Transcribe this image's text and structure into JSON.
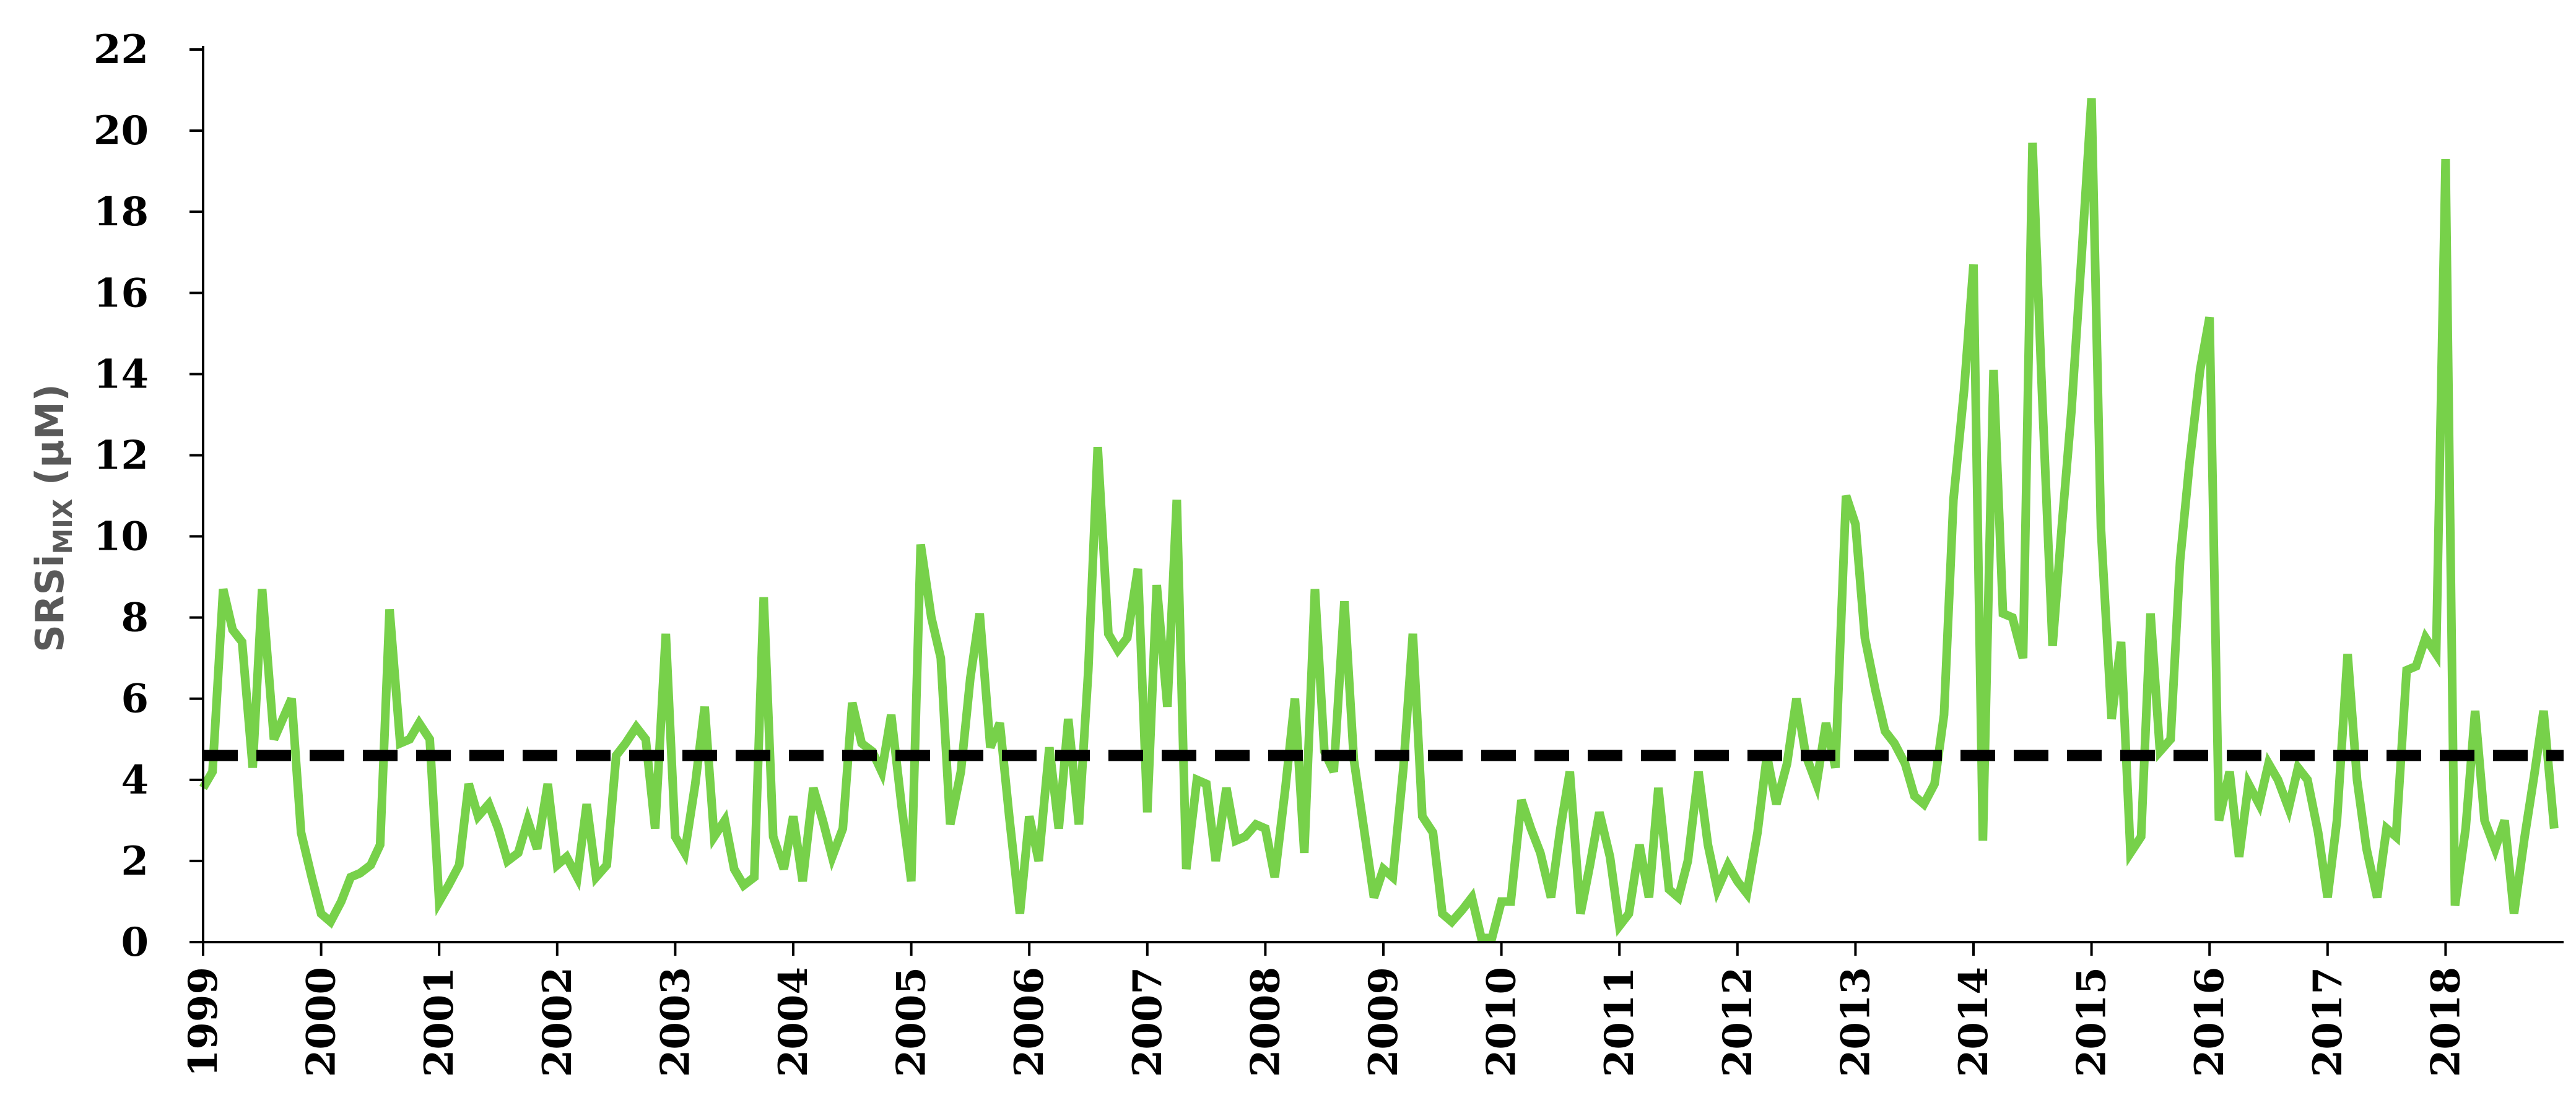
{
  "chart_data": {
    "type": "line",
    "title": "",
    "xlabel": "",
    "ylabel": "SRSi",
    "ylabel_subscript": "MIX",
    "ylabel_unit": "(µM)",
    "ylim": [
      0,
      22
    ],
    "yticks": [
      "0",
      "2",
      "4",
      "6",
      "8",
      "10",
      "12",
      "14",
      "16",
      "18",
      "20",
      "22"
    ],
    "xlim": [
      1999.0,
      2019.0
    ],
    "xticks": [
      "1999",
      "2000",
      "2001",
      "2002",
      "2003",
      "2004",
      "2005",
      "2006",
      "2007",
      "2008",
      "2009",
      "2010",
      "2011",
      "2012",
      "2013",
      "2014",
      "2015",
      "2016",
      "2017",
      "2018"
    ],
    "threshold": 4.6,
    "grid": false,
    "legend": "none",
    "colors": {
      "series": "#77d14a",
      "threshold": "#000000",
      "axis": "#000000"
    },
    "series": [
      {
        "values": [
          [
            1999.0,
            3.8
          ],
          [
            1999.08,
            4.2
          ],
          [
            1999.17,
            8.7
          ],
          [
            1999.25,
            7.7
          ],
          [
            1999.33,
            7.4
          ],
          [
            1999.42,
            4.3
          ],
          [
            1999.5,
            8.7
          ],
          [
            1999.6,
            5.0
          ],
          [
            1999.75,
            6.0
          ],
          [
            1999.83,
            2.7
          ],
          [
            1999.92,
            1.6
          ],
          [
            2000.0,
            0.7
          ],
          [
            2000.08,
            0.5
          ],
          [
            2000.17,
            1.0
          ],
          [
            2000.25,
            1.6
          ],
          [
            2000.33,
            1.7
          ],
          [
            2000.42,
            1.9
          ],
          [
            2000.5,
            2.4
          ],
          [
            2000.58,
            8.2
          ],
          [
            2000.67,
            4.9
          ],
          [
            2000.75,
            5.0
          ],
          [
            2000.83,
            5.4
          ],
          [
            2000.92,
            5.0
          ],
          [
            2001.0,
            1.0
          ],
          [
            2001.08,
            1.4
          ],
          [
            2001.17,
            1.9
          ],
          [
            2001.25,
            3.9
          ],
          [
            2001.33,
            3.1
          ],
          [
            2001.42,
            3.4
          ],
          [
            2001.5,
            2.8
          ],
          [
            2001.58,
            2.0
          ],
          [
            2001.67,
            2.2
          ],
          [
            2001.75,
            3.0
          ],
          [
            2001.83,
            2.3
          ],
          [
            2001.92,
            3.9
          ],
          [
            2002.0,
            1.9
          ],
          [
            2002.08,
            2.1
          ],
          [
            2002.17,
            1.6
          ],
          [
            2002.25,
            3.4
          ],
          [
            2002.33,
            1.6
          ],
          [
            2002.42,
            1.9
          ],
          [
            2002.5,
            4.6
          ],
          [
            2002.58,
            4.9
          ],
          [
            2002.67,
            5.3
          ],
          [
            2002.75,
            5.0
          ],
          [
            2002.83,
            2.8
          ],
          [
            2002.92,
            7.6
          ],
          [
            2003.0,
            2.6
          ],
          [
            2003.08,
            2.2
          ],
          [
            2003.17,
            3.9
          ],
          [
            2003.25,
            5.8
          ],
          [
            2003.33,
            2.6
          ],
          [
            2003.42,
            3.0
          ],
          [
            2003.5,
            1.8
          ],
          [
            2003.58,
            1.4
          ],
          [
            2003.67,
            1.6
          ],
          [
            2003.75,
            8.5
          ],
          [
            2003.83,
            2.6
          ],
          [
            2003.92,
            1.8
          ],
          [
            2004.0,
            3.1
          ],
          [
            2004.08,
            1.5
          ],
          [
            2004.17,
            3.8
          ],
          [
            2004.25,
            3.0
          ],
          [
            2004.33,
            2.1
          ],
          [
            2004.42,
            2.8
          ],
          [
            2004.5,
            5.9
          ],
          [
            2004.58,
            4.9
          ],
          [
            2004.67,
            4.7
          ],
          [
            2004.75,
            4.2
          ],
          [
            2004.83,
            5.6
          ],
          [
            2004.92,
            3.3
          ],
          [
            2005.0,
            1.5
          ],
          [
            2005.08,
            9.8
          ],
          [
            2005.17,
            8.0
          ],
          [
            2005.25,
            7.0
          ],
          [
            2005.33,
            2.9
          ],
          [
            2005.42,
            4.2
          ],
          [
            2005.5,
            6.5
          ],
          [
            2005.58,
            8.1
          ],
          [
            2005.67,
            4.8
          ],
          [
            2005.75,
            5.4
          ],
          [
            2005.83,
            3.1
          ],
          [
            2005.92,
            0.7
          ],
          [
            2006.0,
            3.1
          ],
          [
            2006.08,
            2.0
          ],
          [
            2006.17,
            4.8
          ],
          [
            2006.25,
            2.8
          ],
          [
            2006.33,
            5.5
          ],
          [
            2006.42,
            2.9
          ],
          [
            2006.5,
            6.7
          ],
          [
            2006.58,
            12.2
          ],
          [
            2006.67,
            7.6
          ],
          [
            2006.75,
            7.2
          ],
          [
            2006.83,
            7.5
          ],
          [
            2006.92,
            9.2
          ],
          [
            2007.0,
            3.2
          ],
          [
            2007.08,
            8.8
          ],
          [
            2007.17,
            5.8
          ],
          [
            2007.25,
            10.9
          ],
          [
            2007.33,
            1.8
          ],
          [
            2007.42,
            4.0
          ],
          [
            2007.5,
            3.9
          ],
          [
            2007.58,
            2.0
          ],
          [
            2007.67,
            3.8
          ],
          [
            2007.75,
            2.5
          ],
          [
            2007.83,
            2.6
          ],
          [
            2007.92,
            2.9
          ],
          [
            2008.0,
            2.8
          ],
          [
            2008.08,
            1.6
          ],
          [
            2008.17,
            3.8
          ],
          [
            2008.25,
            6.0
          ],
          [
            2008.33,
            2.2
          ],
          [
            2008.42,
            8.7
          ],
          [
            2008.5,
            4.7
          ],
          [
            2008.58,
            4.2
          ],
          [
            2008.67,
            8.4
          ],
          [
            2008.75,
            4.5
          ],
          [
            2008.83,
            2.9
          ],
          [
            2008.92,
            1.1
          ],
          [
            2009.0,
            1.8
          ],
          [
            2009.08,
            1.6
          ],
          [
            2009.17,
            4.3
          ],
          [
            2009.25,
            7.6
          ],
          [
            2009.33,
            3.1
          ],
          [
            2009.42,
            2.7
          ],
          [
            2009.5,
            0.7
          ],
          [
            2009.58,
            0.5
          ],
          [
            2009.67,
            0.8
          ],
          [
            2009.75,
            1.1
          ],
          [
            2009.83,
            0.1
          ],
          [
            2009.92,
            0.1
          ],
          [
            2010.0,
            1.0
          ],
          [
            2010.08,
            1.0
          ],
          [
            2010.17,
            3.5
          ],
          [
            2010.25,
            2.8
          ],
          [
            2010.33,
            2.2
          ],
          [
            2010.42,
            1.1
          ],
          [
            2010.5,
            2.8
          ],
          [
            2010.58,
            4.2
          ],
          [
            2010.67,
            0.7
          ],
          [
            2010.75,
            1.9
          ],
          [
            2010.83,
            3.2
          ],
          [
            2010.92,
            2.1
          ],
          [
            2011.0,
            0.4
          ],
          [
            2011.08,
            0.7
          ],
          [
            2011.17,
            2.4
          ],
          [
            2011.25,
            1.1
          ],
          [
            2011.33,
            3.8
          ],
          [
            2011.42,
            1.3
          ],
          [
            2011.5,
            1.1
          ],
          [
            2011.58,
            2.0
          ],
          [
            2011.67,
            4.2
          ],
          [
            2011.75,
            2.4
          ],
          [
            2011.83,
            1.3
          ],
          [
            2011.92,
            1.9
          ],
          [
            2012.0,
            1.5
          ],
          [
            2012.08,
            1.2
          ],
          [
            2012.17,
            2.7
          ],
          [
            2012.25,
            4.6
          ],
          [
            2012.33,
            3.4
          ],
          [
            2012.42,
            4.4
          ],
          [
            2012.5,
            6.0
          ],
          [
            2012.58,
            4.6
          ],
          [
            2012.67,
            3.9
          ],
          [
            2012.75,
            5.4
          ],
          [
            2012.83,
            4.3
          ],
          [
            2012.92,
            11.0
          ],
          [
            2013.0,
            10.3
          ],
          [
            2013.08,
            7.5
          ],
          [
            2013.17,
            6.2
          ],
          [
            2013.25,
            5.2
          ],
          [
            2013.33,
            4.9
          ],
          [
            2013.42,
            4.4
          ],
          [
            2013.5,
            3.6
          ],
          [
            2013.58,
            3.4
          ],
          [
            2013.67,
            3.9
          ],
          [
            2013.75,
            5.6
          ],
          [
            2013.83,
            10.9
          ],
          [
            2013.92,
            13.6
          ],
          [
            2014.0,
            16.7
          ],
          [
            2014.08,
            2.5
          ],
          [
            2014.17,
            14.1
          ],
          [
            2014.25,
            8.1
          ],
          [
            2014.33,
            8.0
          ],
          [
            2014.42,
            7.0
          ],
          [
            2014.5,
            19.7
          ],
          [
            2014.58,
            13.6
          ],
          [
            2014.67,
            7.3
          ],
          [
            2014.75,
            10.3
          ],
          [
            2014.83,
            13.1
          ],
          [
            2014.92,
            17.1
          ],
          [
            2015.0,
            20.8
          ],
          [
            2015.08,
            10.2
          ],
          [
            2015.17,
            5.5
          ],
          [
            2015.25,
            7.4
          ],
          [
            2015.33,
            2.2
          ],
          [
            2015.42,
            2.6
          ],
          [
            2015.5,
            8.1
          ],
          [
            2015.58,
            4.7
          ],
          [
            2015.67,
            5.0
          ],
          [
            2015.75,
            9.4
          ],
          [
            2015.83,
            11.8
          ],
          [
            2015.92,
            14.1
          ],
          [
            2016.0,
            15.4
          ],
          [
            2016.08,
            3.0
          ],
          [
            2016.17,
            4.2
          ],
          [
            2016.25,
            2.1
          ],
          [
            2016.33,
            3.9
          ],
          [
            2016.42,
            3.4
          ],
          [
            2016.5,
            4.4
          ],
          [
            2016.58,
            4.0
          ],
          [
            2016.67,
            3.3
          ],
          [
            2016.75,
            4.3
          ],
          [
            2016.83,
            4.0
          ],
          [
            2016.92,
            2.7
          ],
          [
            2017.0,
            1.1
          ],
          [
            2017.08,
            3.0
          ],
          [
            2017.17,
            7.1
          ],
          [
            2017.25,
            4.0
          ],
          [
            2017.33,
            2.3
          ],
          [
            2017.42,
            1.1
          ],
          [
            2017.5,
            2.8
          ],
          [
            2017.58,
            2.6
          ],
          [
            2017.67,
            6.7
          ],
          [
            2017.75,
            6.8
          ],
          [
            2017.83,
            7.5
          ],
          [
            2017.92,
            7.1
          ],
          [
            2018.0,
            19.3
          ],
          [
            2018.08,
            0.9
          ],
          [
            2018.17,
            2.8
          ],
          [
            2018.25,
            5.7
          ],
          [
            2018.33,
            3.0
          ],
          [
            2018.42,
            2.3
          ],
          [
            2018.5,
            3.0
          ],
          [
            2018.58,
            0.7
          ],
          [
            2018.67,
            2.6
          ],
          [
            2018.75,
            4.1
          ],
          [
            2018.83,
            5.7
          ],
          [
            2018.92,
            2.8
          ]
        ]
      }
    ]
  }
}
